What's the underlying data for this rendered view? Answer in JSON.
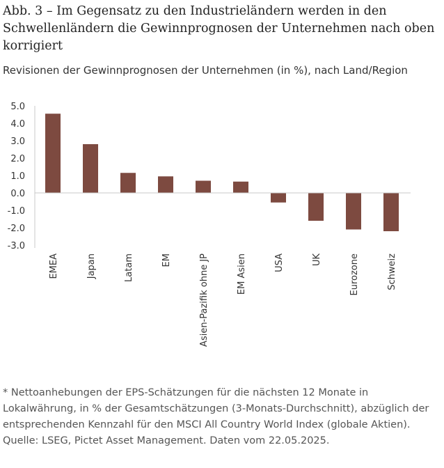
{
  "title": "Abb. 3 – Im Gegensatz zu den Industrieländern werden in den Schwellenländern die Gewinnprognosen der Unternehmen nach oben korrigiert",
  "subtitle": "Revisionen der Gewinnprognosen der Unternehmen (in %), nach Land/Region",
  "footnote": "* Nettoanhebungen der EPS-Schätzungen für die nächsten 12 Monate in Lokalwährung, in % der Gesamtschätzungen (3-Monats-Durchschnitt), abzüglich der entsprechenden Kennzahl für den MSCI All Country World Index (globale Aktien). Quelle: LSEG, Pictet Asset Management. Daten vom 22.05.2025.",
  "chart_data": {
    "type": "bar",
    "categories": [
      "EMEA",
      "Japan",
      "Latam",
      "EM",
      "Asien-Pazifik ohne JP",
      "EM Asien",
      "USA",
      "UK",
      "Eurozone",
      "Schweiz"
    ],
    "values": [
      4.55,
      2.8,
      1.15,
      0.95,
      0.7,
      0.65,
      -0.55,
      -1.6,
      -2.1,
      -2.2
    ],
    "ylim": [
      -3,
      5
    ],
    "yticks": [
      "5.0",
      "4.0",
      "3.0",
      "2.0",
      "1.0",
      "0.0",
      "-1.0",
      "-2.0",
      "-3.0"
    ],
    "grid": false,
    "colors": {
      "bar": "#7d4a40",
      "axis": "#c8c8c8"
    }
  }
}
